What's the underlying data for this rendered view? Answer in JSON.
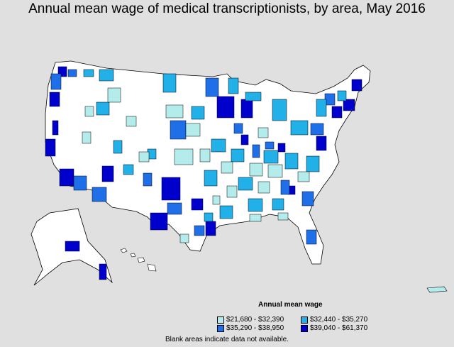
{
  "title": "Annual mean wage of medical transcriptionists, by area, May 2016",
  "legend": {
    "title": "Annual mean wage",
    "items": [
      {
        "label": "$21,680 - $32,390",
        "color": "#b4ecec"
      },
      {
        "label": "$32,440 - $35,270",
        "color": "#21b0e8"
      },
      {
        "label": "$35,290 - $38,950",
        "color": "#1f6fe8"
      },
      {
        "label": "$39,040 - $61,370",
        "color": "#0000cc"
      }
    ]
  },
  "note": "Blank areas indicate data not available."
}
